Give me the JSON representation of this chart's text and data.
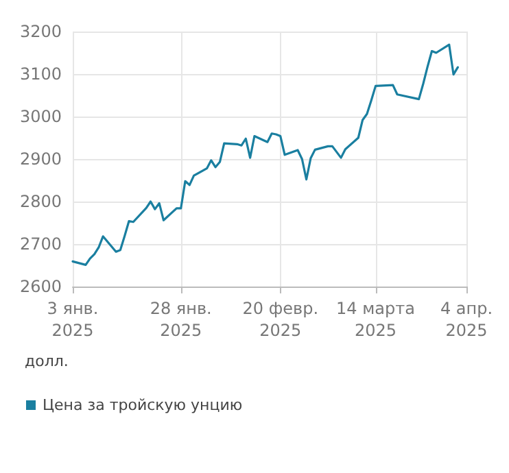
{
  "chart_data": {
    "type": "line",
    "ylabel": "долл.",
    "legend": "bottom left",
    "grid": true,
    "marker": "none",
    "line_style": "solid",
    "xlim": [
      "2025-01-03",
      "2025-04-04"
    ],
    "xticks": [
      {
        "value": "2025-01-03",
        "label": "3 янв.\n2025"
      },
      {
        "value": "2025-01-28",
        "label": "28 янв.\n2025"
      },
      {
        "value": "2025-02-20",
        "label": "20 февр.\n2025"
      },
      {
        "value": "2025-03-14",
        "label": "14 марта\n2025"
      },
      {
        "value": "2025-04-04",
        "label": "4 апр.\n2025"
      }
    ],
    "ylim": [
      2600,
      3200
    ],
    "yticks": [
      2600,
      2700,
      2800,
      2900,
      3000,
      3100,
      3200
    ],
    "x": [
      "2025-01-03",
      "2025-01-06",
      "2025-01-07",
      "2025-01-08",
      "2025-01-09",
      "2025-01-10",
      "2025-01-13",
      "2025-01-14",
      "2025-01-15",
      "2025-01-16",
      "2025-01-17",
      "2025-01-20",
      "2025-01-21",
      "2025-01-22",
      "2025-01-23",
      "2025-01-24",
      "2025-01-27",
      "2025-01-28",
      "2025-01-29",
      "2025-01-30",
      "2025-01-31",
      "2025-02-03",
      "2025-02-04",
      "2025-02-05",
      "2025-02-06",
      "2025-02-07",
      "2025-02-10",
      "2025-02-11",
      "2025-02-12",
      "2025-02-13",
      "2025-02-14",
      "2025-02-17",
      "2025-02-18",
      "2025-02-19",
      "2025-02-20",
      "2025-02-21",
      "2025-02-24",
      "2025-02-25",
      "2025-02-26",
      "2025-02-27",
      "2025-02-28",
      "2025-03-03",
      "2025-03-04",
      "2025-03-06",
      "2025-03-07",
      "2025-03-10",
      "2025-03-11",
      "2025-03-12",
      "2025-03-13",
      "2025-03-14",
      "2025-03-18",
      "2025-03-19",
      "2025-03-24",
      "2025-03-25",
      "2025-03-26",
      "2025-03-27",
      "2025-03-28",
      "2025-03-31",
      "2025-04-01",
      "2025-04-02"
    ],
    "series": [
      {
        "name": "Цена за тройскую унцию",
        "color": "#1a7fa0",
        "values": [
          2659,
          2651,
          2666,
          2676,
          2692,
          2718,
          2682,
          2686,
          2719,
          2754,
          2752,
          2785,
          2800,
          2782,
          2796,
          2756,
          2784,
          2784,
          2848,
          2839,
          2861,
          2878,
          2897,
          2881,
          2893,
          2937,
          2935,
          2932,
          2948,
          2903,
          2954,
          2940,
          2960,
          2958,
          2954,
          2910,
          2921,
          2900,
          2852,
          2902,
          2922,
          2930,
          2930,
          2903,
          2923,
          2950,
          2992,
          3006,
          3038,
          3072,
          3074,
          3052,
          3041,
          3077,
          3117,
          3154,
          3150,
          3169,
          3099,
          3116
        ]
      }
    ]
  }
}
